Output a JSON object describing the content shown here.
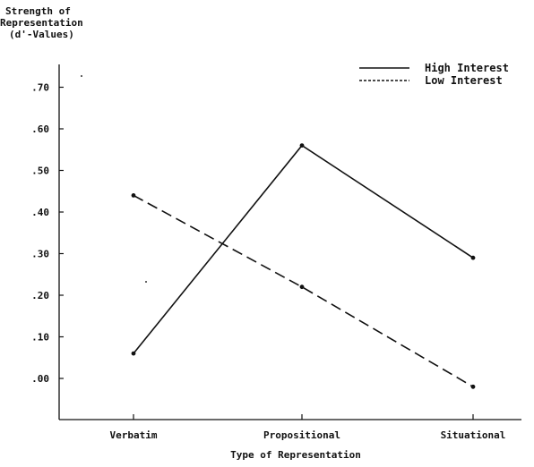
{
  "chart_data": {
    "type": "line",
    "ylabel": [
      "Strength of",
      "Representation",
      "(d'-Values)"
    ],
    "xlabel": "Type of Representation",
    "categories": [
      "Verbatim",
      "Propositional",
      "Situational"
    ],
    "yticks": [
      ".00",
      ".10",
      ".20",
      ".30",
      ".40",
      ".50",
      ".60",
      ".70"
    ],
    "ylim": [
      -0.1,
      0.76
    ],
    "grid": false,
    "legend_position": "top-right",
    "series": [
      {
        "name": "High Interest",
        "style": "solid",
        "values": [
          0.06,
          0.56,
          0.29
        ]
      },
      {
        "name": "Low Interest",
        "style": "dashed",
        "values": [
          0.44,
          0.22,
          -0.02
        ]
      }
    ]
  }
}
